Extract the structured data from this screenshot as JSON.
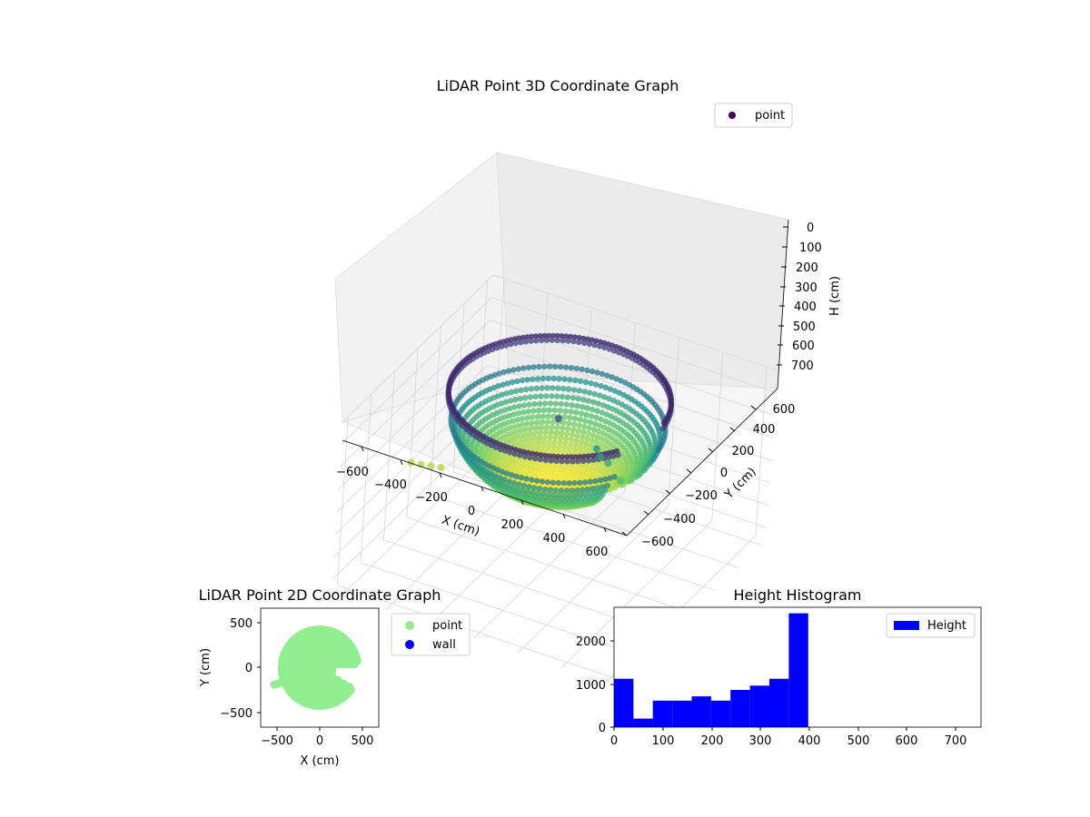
{
  "colors": {
    "point_3d": "#440154",
    "point_2d": "#90ee90",
    "wall_2d": "#0000ff",
    "hist_bar": "#0000ff",
    "colormap": [
      "#440154",
      "#3b528b",
      "#21918c",
      "#5ec962",
      "#fde725"
    ]
  },
  "chart_data": [
    {
      "type": "scatter",
      "projection": "3d",
      "title": "LiDAR Point 3D Coordinate Graph",
      "xlabel": "X (cm)",
      "ylabel": "Y (cm)",
      "zlabel": "H (cm)",
      "x_ticks": [
        "−600",
        "−400",
        "−200",
        "0",
        "200",
        "400",
        "600"
      ],
      "y_ticks": [
        "−600",
        "−400",
        "−200",
        "0",
        "200",
        "400",
        "600"
      ],
      "z_ticks": [
        "0",
        "100",
        "200",
        "300",
        "400",
        "500",
        "600",
        "700"
      ],
      "xlim": [
        -650,
        650
      ],
      "ylim": [
        -650,
        650
      ],
      "zlim": [
        0,
        750
      ],
      "z_inverted": true,
      "colormap": "viridis",
      "legend": {
        "placement": "top-right",
        "entries": [
          "point"
        ]
      },
      "shape": "hemispherical bowl",
      "bowl_radius": 450,
      "bowl_max_depth": 410,
      "bowl_gap_angle_deg": [
        -30,
        5
      ],
      "outliers": [
        {
          "x": 0,
          "y": 0,
          "h": 100
        },
        {
          "x": 150,
          "y": 60,
          "h": 215
        },
        {
          "x": 180,
          "y": 40,
          "h": 230
        },
        {
          "x": 220,
          "y": 30,
          "h": 240
        },
        {
          "x": 290,
          "y": 10,
          "h": 285
        },
        {
          "x": -540,
          "y": -220,
          "h": 360
        },
        {
          "x": -500,
          "y": -210,
          "h": 360
        },
        {
          "x": -460,
          "y": -200,
          "h": 360
        },
        {
          "x": -420,
          "y": -190,
          "h": 358
        }
      ]
    },
    {
      "type": "scatter",
      "title": "LiDAR Point 2D Coordinate Graph",
      "xlabel": "X (cm)",
      "ylabel": "Y (cm)",
      "x_ticks": [
        "−500",
        "0",
        "500"
      ],
      "y_ticks": [
        "−500",
        "0",
        "500"
      ],
      "xlim": [
        -700,
        700
      ],
      "ylim": [
        -700,
        700
      ],
      "legend": {
        "placement": "outside-right",
        "entries": [
          "point",
          "wall"
        ]
      },
      "disk_radius": 450,
      "gap_angle_deg": [
        -30,
        5
      ],
      "arm_points": [
        {
          "x": -540,
          "y": -200
        },
        {
          "x": -500,
          "y": -190
        },
        {
          "x": -460,
          "y": -175
        },
        {
          "x": -420,
          "y": -160
        },
        {
          "x": -380,
          "y": -145
        },
        {
          "x": -340,
          "y": -130
        },
        {
          "x": -300,
          "y": -118
        }
      ]
    },
    {
      "type": "bar",
      "title": "Height Histogram",
      "series": [
        {
          "name": "Height"
        }
      ],
      "bins": [
        {
          "x0": 0,
          "x1": 41,
          "count": 1130
        },
        {
          "x0": 41,
          "x1": 82,
          "count": 200
        },
        {
          "x0": 82,
          "x1": 123,
          "count": 620
        },
        {
          "x0": 123,
          "x1": 164,
          "count": 620
        },
        {
          "x0": 164,
          "x1": 205,
          "count": 720
        },
        {
          "x0": 205,
          "x1": 246,
          "count": 620
        },
        {
          "x0": 246,
          "x1": 287,
          "count": 870
        },
        {
          "x0": 287,
          "x1": 328,
          "count": 970
        },
        {
          "x0": 328,
          "x1": 369,
          "count": 1130
        },
        {
          "x0": 369,
          "x1": 410,
          "count": 2660
        }
      ],
      "x_ticks": [
        "0",
        "100",
        "200",
        "300",
        "400",
        "500",
        "600",
        "700"
      ],
      "y_ticks": [
        "0",
        "1000",
        "2000"
      ],
      "xlim": [
        0,
        775
      ],
      "ylim": [
        0,
        2800
      ],
      "legend": {
        "placement": "top-right",
        "entries": [
          "Height"
        ]
      }
    }
  ]
}
